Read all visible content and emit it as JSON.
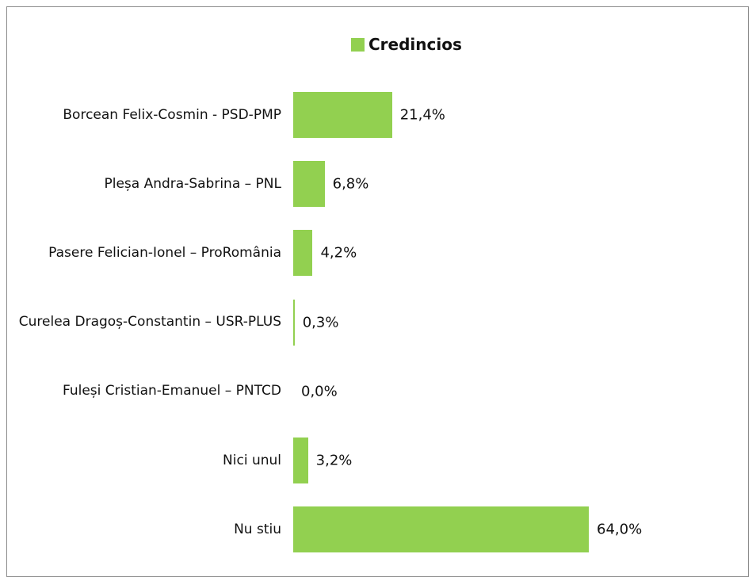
{
  "chart_data": {
    "type": "bar",
    "orientation": "horizontal",
    "categories": [
      "Borcean Felix-Cosmin - PSD-PMP",
      "Pleșa Andra-Sabrina – PNL",
      "Pasere Felician-Ionel – ProRomânia",
      "Curelea Dragoș-Constantin – USR-PLUS",
      "Fuleși Cristian-Emanuel – PNTCD",
      "Nici unul",
      "Nu stiu"
    ],
    "series": [
      {
        "name": "Credincios",
        "color": "#92d050",
        "values": [
          21.4,
          6.8,
          4.2,
          0.3,
          0.0,
          3.2,
          64.0
        ],
        "value_labels": [
          "21,4%",
          "6,8%",
          "4,2%",
          "0,3%",
          "0,0%",
          "3,2%",
          "64,0%"
        ]
      }
    ],
    "legend": "top"
  }
}
